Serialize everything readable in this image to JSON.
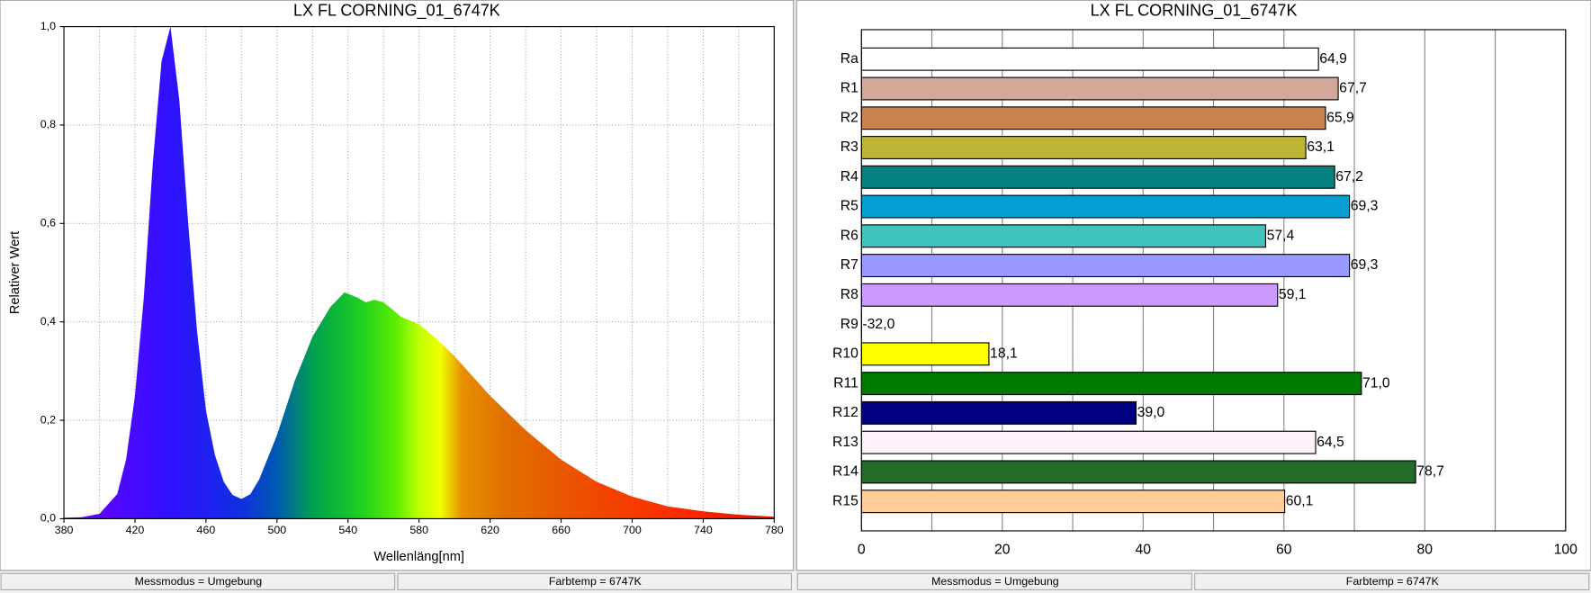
{
  "chart_data": [
    {
      "type": "area",
      "title": "LX FL CORNING_01_6747K",
      "x_label": "Wellenläng[nm]",
      "y_label": "Relativer Wert",
      "x": [
        380,
        390,
        400,
        410,
        415,
        420,
        425,
        430,
        435,
        440,
        445,
        450,
        455,
        460,
        465,
        470,
        475,
        480,
        485,
        490,
        500,
        510,
        520,
        530,
        538,
        545,
        550,
        555,
        560,
        565,
        570,
        580,
        590,
        600,
        620,
        640,
        660,
        680,
        700,
        720,
        740,
        760,
        780
      ],
      "values": [
        0.002,
        0.003,
        0.01,
        0.05,
        0.12,
        0.25,
        0.45,
        0.72,
        0.93,
        1.0,
        0.85,
        0.6,
        0.38,
        0.22,
        0.13,
        0.075,
        0.048,
        0.04,
        0.05,
        0.08,
        0.17,
        0.28,
        0.37,
        0.43,
        0.46,
        0.45,
        0.44,
        0.445,
        0.44,
        0.425,
        0.41,
        0.395,
        0.365,
        0.33,
        0.25,
        0.18,
        0.12,
        0.075,
        0.045,
        0.025,
        0.015,
        0.008,
        0.004
      ],
      "xlim": [
        380,
        780
      ],
      "ylim": [
        0,
        1
      ],
      "xticks": [
        380,
        420,
        460,
        500,
        540,
        580,
        620,
        660,
        700,
        740,
        780
      ],
      "xminorticks": [
        400,
        440,
        480,
        520,
        560,
        600,
        640,
        680,
        720,
        760
      ],
      "yticks": [
        {
          "value": 0,
          "label": "0,0"
        },
        {
          "value": 0.2,
          "label": "0,2"
        },
        {
          "value": 0.4,
          "label": "0,4"
        },
        {
          "value": 0.6,
          "label": "0,6"
        },
        {
          "value": 0.8,
          "label": "0,8"
        },
        {
          "value": 1,
          "label": "1,0"
        }
      ],
      "grid": true,
      "footer": [
        "Messmodus = Umgebung",
        "Farbtemp = 6747K"
      ]
    },
    {
      "type": "hbar",
      "title": "LX FL CORNING_01_6747K",
      "categories": [
        "Ra",
        "R1",
        "R2",
        "R3",
        "R4",
        "R5",
        "R6",
        "R7",
        "R8",
        "R9",
        "R10",
        "R11",
        "R12",
        "R13",
        "R14",
        "R15"
      ],
      "values": [
        64.9,
        67.7,
        65.9,
        63.1,
        67.2,
        69.3,
        57.4,
        69.3,
        59.1,
        -32.0,
        18.1,
        71.0,
        39.0,
        64.5,
        78.7,
        60.1
      ],
      "value_labels": [
        "64,9",
        "67,7",
        "65,9",
        "63,1",
        "67,2",
        "69,3",
        "57,4",
        "69,3",
        "59,1",
        "-32,0",
        "18,1",
        "71,0",
        "39,0",
        "64,5",
        "78,7",
        "60,1"
      ],
      "colors": [
        "#ffffff",
        "#d4a898",
        "#c9824f",
        "#bdb535",
        "#068080",
        "#069dd0",
        "#3fc4bf",
        "#9999ff",
        "#cc99ff",
        "#ff0000",
        "#ffff00",
        "#007a00",
        "#000080",
        "#fff0fa",
        "#226b2a",
        "#ffcc99"
      ],
      "xlim": [
        0,
        100
      ],
      "xticks": [
        0,
        20,
        40,
        60,
        80,
        100
      ],
      "xminorticks": [
        10,
        30,
        50,
        70,
        90
      ],
      "grid": true,
      "footer": [
        "Messmodus = Umgebung",
        "Farbtemp = 6747K"
      ]
    }
  ]
}
